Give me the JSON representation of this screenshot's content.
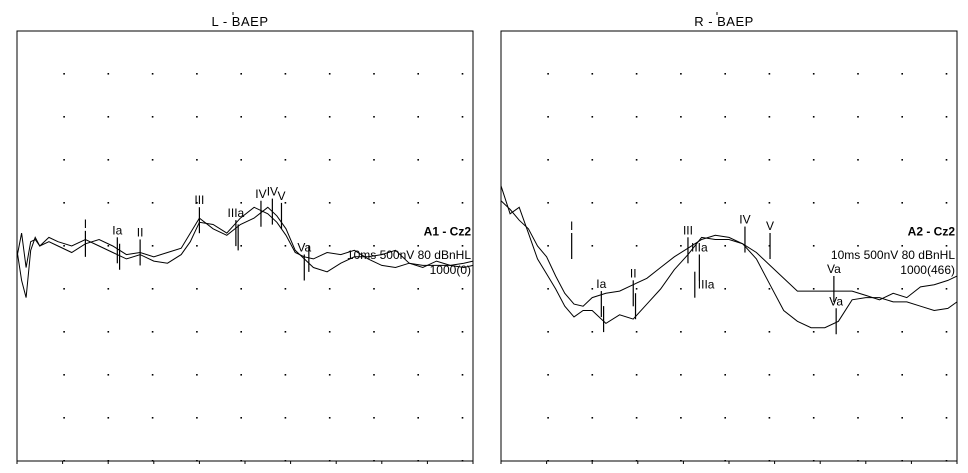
{
  "chart_data": [
    {
      "type": "line",
      "title": "L  - BAEP",
      "montage": "A1 - Cz2",
      "params": "10ms 500nV 80 dBnHL",
      "averages": "1000(0)",
      "xlim": [
        0,
        10
      ],
      "ylim": [
        -1.0,
        1.0
      ],
      "grid": "dots",
      "series": [
        {
          "x": [
            0.0,
            0.1,
            0.2,
            0.3,
            0.4,
            0.5,
            0.7,
            0.9,
            1.2,
            1.5,
            1.8,
            2.1,
            2.4,
            2.7,
            3.0,
            3.3,
            3.6,
            3.8,
            4.0,
            4.3,
            4.6,
            4.9,
            5.2,
            5.5,
            5.7,
            5.9,
            6.1,
            6.3,
            6.5,
            6.8,
            7.1,
            7.4,
            7.7,
            8.0,
            8.3,
            8.6,
            8.9,
            9.2,
            9.5,
            9.8,
            10.0
          ],
          "y": [
            -0.05,
            0.06,
            -0.1,
            0.02,
            0.03,
            0.0,
            0.02,
            0.0,
            -0.03,
            0.01,
            0.03,
            0.0,
            -0.04,
            -0.03,
            -0.05,
            -0.03,
            -0.01,
            0.06,
            0.13,
            0.08,
            0.05,
            0.1,
            0.13,
            0.18,
            0.14,
            0.08,
            -0.02,
            -0.06,
            -0.1,
            -0.12,
            -0.08,
            -0.05,
            -0.05,
            -0.04,
            -0.02,
            -0.08,
            -0.1,
            -0.07,
            -0.09,
            -0.1,
            -0.09
          ]
        },
        {
          "x": [
            0.0,
            0.1,
            0.2,
            0.3,
            0.4,
            0.5,
            0.7,
            0.9,
            1.2,
            1.5,
            1.8,
            2.1,
            2.4,
            2.7,
            3.0,
            3.3,
            3.6,
            3.8,
            4.0,
            4.3,
            4.6,
            4.9,
            5.2,
            5.5,
            5.7,
            5.9,
            6.1,
            6.3,
            6.5,
            6.8,
            7.1,
            7.4,
            7.7,
            8.0,
            8.3,
            8.6,
            8.9,
            9.2,
            9.5,
            9.8,
            10.0
          ],
          "y": [
            -0.02,
            -0.16,
            -0.24,
            -0.02,
            0.04,
            0.0,
            0.04,
            0.02,
            0.0,
            0.03,
            0.0,
            -0.03,
            -0.06,
            -0.04,
            -0.07,
            -0.08,
            -0.04,
            0.02,
            0.11,
            0.1,
            0.06,
            0.13,
            0.18,
            0.15,
            0.11,
            0.05,
            -0.03,
            -0.05,
            -0.06,
            -0.03,
            -0.04,
            -0.02,
            -0.06,
            -0.09,
            -0.1,
            -0.08,
            -0.09,
            -0.09,
            -0.09,
            -0.08,
            -0.07
          ]
        }
      ],
      "markers": [
        {
          "label": "I",
          "x": 1.5,
          "y": 0.01,
          "lp": "above"
        },
        {
          "label": "Ia",
          "x": 2.2,
          "y": -0.02,
          "lp": "above"
        },
        {
          "label": "Ia",
          "x": 2.25,
          "y": -0.05,
          "lp": "none"
        },
        {
          "label": "II",
          "x": 2.7,
          "y": -0.03,
          "lp": "above"
        },
        {
          "label": "III",
          "x": 4.0,
          "y": 0.12,
          "lp": "above"
        },
        {
          "label": "IIIa",
          "x": 4.8,
          "y": 0.06,
          "lp": "above"
        },
        {
          "label": "IIIa",
          "x": 4.85,
          "y": 0.04,
          "lp": "none"
        },
        {
          "label": "IV",
          "x": 5.35,
          "y": 0.15,
          "lp": "above"
        },
        {
          "label": "IV",
          "x": 5.6,
          "y": 0.16,
          "lp": "above"
        },
        {
          "label": "V",
          "x": 5.8,
          "y": 0.14,
          "lp": "above"
        },
        {
          "label": "Va",
          "x": 6.3,
          "y": -0.1,
          "lp": "above"
        },
        {
          "label": "Va",
          "x": 6.4,
          "y": -0.06,
          "lp": "none"
        }
      ]
    },
    {
      "type": "line",
      "title": "R  - BAEP",
      "montage": "A2 - Cz2",
      "params": "10ms 500nV 80 dBnHL",
      "averages": "1000(466)",
      "xlim": [
        0,
        10
      ],
      "ylim": [
        -1.0,
        1.0
      ],
      "grid": "dots",
      "series": [
        {
          "x": [
            0.0,
            0.2,
            0.4,
            0.6,
            0.8,
            1.0,
            1.2,
            1.4,
            1.6,
            1.8,
            2.0,
            2.3,
            2.6,
            2.9,
            3.2,
            3.5,
            3.8,
            4.1,
            4.4,
            4.7,
            5.0,
            5.3,
            5.6,
            5.9,
            6.2,
            6.5,
            6.8,
            7.1,
            7.4,
            7.7,
            8.0,
            8.3,
            8.6,
            8.9,
            9.2,
            9.5,
            9.8,
            10.0
          ],
          "y": [
            0.21,
            0.17,
            0.12,
            0.08,
            0.0,
            -0.05,
            -0.14,
            -0.22,
            -0.27,
            -0.28,
            -0.24,
            -0.22,
            -0.21,
            -0.18,
            -0.15,
            -0.1,
            -0.05,
            -0.01,
            0.03,
            0.05,
            0.04,
            0.01,
            -0.03,
            -0.09,
            -0.15,
            -0.21,
            -0.21,
            -0.21,
            -0.21,
            -0.21,
            -0.23,
            -0.25,
            -0.22,
            -0.24,
            -0.19,
            -0.18,
            -0.16,
            -0.14
          ]
        },
        {
          "x": [
            0.0,
            0.2,
            0.4,
            0.6,
            0.8,
            1.0,
            1.2,
            1.4,
            1.6,
            1.8,
            2.0,
            2.3,
            2.6,
            2.9,
            3.2,
            3.5,
            3.8,
            4.1,
            4.4,
            4.7,
            5.0,
            5.3,
            5.6,
            5.9,
            6.2,
            6.5,
            6.8,
            7.1,
            7.4,
            7.7,
            8.0,
            8.3,
            8.6,
            8.9,
            9.2,
            9.5,
            9.8,
            10.0
          ],
          "y": [
            0.28,
            0.15,
            0.18,
            0.06,
            -0.06,
            -0.13,
            -0.2,
            -0.28,
            -0.33,
            -0.3,
            -0.3,
            -0.36,
            -0.32,
            -0.34,
            -0.27,
            -0.2,
            -0.11,
            -0.04,
            0.04,
            0.03,
            0.03,
            0.01,
            -0.06,
            -0.18,
            -0.3,
            -0.35,
            -0.38,
            -0.38,
            -0.35,
            -0.25,
            -0.24,
            -0.24,
            -0.26,
            -0.26,
            -0.28,
            -0.3,
            -0.29,
            -0.26
          ]
        }
      ],
      "markers": [
        {
          "label": "I",
          "x": 1.55,
          "y": 0.0,
          "lp": "above"
        },
        {
          "label": "Ia",
          "x": 2.2,
          "y": -0.27,
          "lp": "above"
        },
        {
          "label": "Ia",
          "x": 2.25,
          "y": -0.34,
          "lp": "none"
        },
        {
          "label": "II",
          "x": 2.9,
          "y": -0.22,
          "lp": "above"
        },
        {
          "label": "II",
          "x": 2.95,
          "y": -0.28,
          "lp": "none"
        },
        {
          "label": "III",
          "x": 4.1,
          "y": -0.02,
          "lp": "above"
        },
        {
          "label": "IIIa",
          "x": 4.35,
          "y": -0.1,
          "lp": "above"
        },
        {
          "label": "IIIa",
          "x": 4.25,
          "y": -0.18,
          "lp": "right"
        },
        {
          "label": "IV",
          "x": 5.35,
          "y": 0.03,
          "lp": "above"
        },
        {
          "label": "V",
          "x": 5.9,
          "y": 0.0,
          "lp": "above"
        },
        {
          "label": "Va",
          "x": 7.3,
          "y": -0.2,
          "lp": "above"
        },
        {
          "label": "Va",
          "x": 7.35,
          "y": -0.35,
          "lp": "above"
        }
      ]
    }
  ]
}
